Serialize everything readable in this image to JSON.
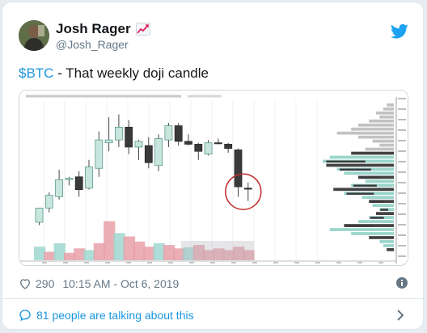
{
  "author": {
    "display_name": "Josh Rager",
    "handle": "@Josh_Rager",
    "emoji_icon": "chart-increasing-icon"
  },
  "tweet": {
    "cashtag": "$BTC",
    "text": " - That weekly doji candle"
  },
  "stats": {
    "likes": "290",
    "timestamp": "10:15 AM - Oct 6, 2019"
  },
  "conversation": {
    "label": "81 people are talking about this"
  },
  "colors": {
    "accent": "#1b95e0",
    "bull": "#c8e6de",
    "bear": "#3a3a3a",
    "vol_red": "#e8a0a8",
    "vol_teal": "#9ed8d0"
  },
  "chart_data": {
    "type": "candlestick",
    "candles": [
      {
        "o": 2.0,
        "h": 7.0,
        "l": 1.0,
        "c": 7.0
      },
      {
        "o": 7.0,
        "h": 12.5,
        "l": 5.5,
        "c": 11.5
      },
      {
        "o": 11.0,
        "h": 20.5,
        "l": 10.0,
        "c": 17.0
      },
      {
        "o": 17.0,
        "h": 18.0,
        "l": 15.0,
        "c": 17.5
      },
      {
        "o": 18.0,
        "h": 20.0,
        "l": 11.0,
        "c": 13.5
      },
      {
        "o": 14.0,
        "h": 24.0,
        "l": 13.5,
        "c": 21.5
      },
      {
        "o": 21.0,
        "h": 34.0,
        "l": 18.0,
        "c": 31.0
      },
      {
        "o": 30.0,
        "h": 39.0,
        "l": 27.0,
        "c": 31.0
      },
      {
        "o": 31.0,
        "h": 40.0,
        "l": 28.5,
        "c": 35.5
      },
      {
        "o": 35.5,
        "h": 38.0,
        "l": 26.0,
        "c": 28.5
      },
      {
        "o": 28.5,
        "h": 31.0,
        "l": 24.0,
        "c": 30.5
      },
      {
        "o": 29.0,
        "h": 32.0,
        "l": 21.0,
        "c": 23.0
      },
      {
        "o": 22.0,
        "h": 33.0,
        "l": 20.0,
        "c": 31.5
      },
      {
        "o": 31.0,
        "h": 37.0,
        "l": 28.5,
        "c": 36.0
      },
      {
        "o": 36.0,
        "h": 37.0,
        "l": 29.0,
        "c": 30.5
      },
      {
        "o": 30.5,
        "h": 33.0,
        "l": 29.0,
        "c": 29.5
      },
      {
        "o": 29.5,
        "h": 30.0,
        "l": 24.0,
        "c": 27.0
      },
      {
        "o": 26.0,
        "h": 31.0,
        "l": 25.5,
        "c": 30.0
      },
      {
        "o": 30.0,
        "h": 31.5,
        "l": 29.5,
        "c": 29.8
      },
      {
        "o": 29.5,
        "h": 30.0,
        "l": 26.5,
        "c": 28.0
      },
      {
        "o": 27.5,
        "h": 28.0,
        "l": 11.0,
        "c": 14.5
      },
      {
        "o": 14.0,
        "h": 16.0,
        "l": 9.5,
        "c": 13.8
      }
    ],
    "volumes": [
      {
        "v": 4.0,
        "c": "teal"
      },
      {
        "v": 2.5,
        "c": "red"
      },
      {
        "v": 5.0,
        "c": "teal"
      },
      {
        "v": 2.2,
        "c": "red"
      },
      {
        "v": 3.5,
        "c": "red"
      },
      {
        "v": 3.0,
        "c": "teal"
      },
      {
        "v": 5.0,
        "c": "red"
      },
      {
        "v": 11.5,
        "c": "red"
      },
      {
        "v": 8.0,
        "c": "teal"
      },
      {
        "v": 7.0,
        "c": "red"
      },
      {
        "v": 5.5,
        "c": "red"
      },
      {
        "v": 4.0,
        "c": "red"
      },
      {
        "v": 5.0,
        "c": "teal"
      },
      {
        "v": 4.5,
        "c": "red"
      },
      {
        "v": 3.5,
        "c": "red"
      },
      {
        "v": 3.8,
        "c": "teal"
      },
      {
        "v": 4.5,
        "c": "red"
      },
      {
        "v": 3.0,
        "c": "red"
      },
      {
        "v": 3.5,
        "c": "red"
      },
      {
        "v": 3.0,
        "c": "red"
      },
      {
        "v": 4.0,
        "c": "red"
      },
      {
        "v": 3.0,
        "c": "red"
      }
    ],
    "volume_profile": [
      0.1,
      0.15,
      0.25,
      0.2,
      0.35,
      0.5,
      0.6,
      0.8,
      0.5,
      0.3,
      0.2,
      0.4,
      0.6,
      0.9,
      1.0,
      0.95,
      0.8,
      0.7,
      0.5,
      0.4,
      0.6,
      0.85,
      0.7,
      0.45,
      0.35,
      0.3,
      0.2,
      0.25,
      0.35,
      0.5,
      0.7,
      0.9,
      0.6,
      0.35,
      0.2,
      0.15,
      0.1
    ],
    "title": "",
    "xlabel": "",
    "ylabel": ""
  }
}
